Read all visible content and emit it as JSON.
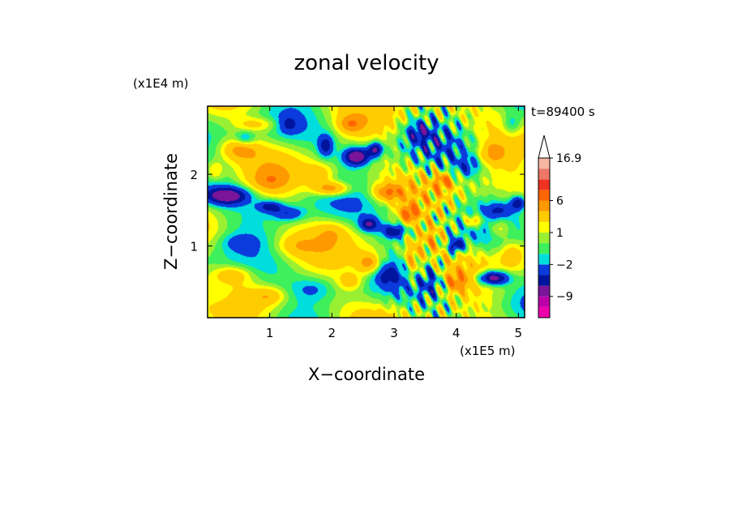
{
  "chart_data": {
    "type": "heatmap",
    "title": "zonal velocity",
    "xlabel": "X−coordinate",
    "ylabel": "Z−coordinate",
    "x_unit": "(x1E5 m)",
    "y_unit": "(x1E4 m)",
    "time_label": "t=89400 s",
    "xlim": [
      0,
      5.1
    ],
    "ylim": [
      0,
      2.95
    ],
    "x_ticks": [
      {
        "value": 1,
        "label": "1"
      },
      {
        "value": 2,
        "label": "2"
      },
      {
        "value": 3,
        "label": "3"
      },
      {
        "value": 4,
        "label": "4"
      },
      {
        "value": 5,
        "label": "5"
      }
    ],
    "y_ticks": [
      {
        "value": 1,
        "label": "1"
      },
      {
        "value": 2,
        "label": "2"
      }
    ],
    "colorbar": {
      "levels": [
        -16.9,
        -12,
        -9,
        -6,
        -4,
        -2,
        -1,
        0,
        1,
        2,
        4,
        6,
        9,
        12,
        16.9
      ],
      "colors": [
        "#ee00aa",
        "#bb00aa",
        "#7a1499",
        "#00149e",
        "#0b3bdc",
        "#00dddd",
        "#3ef05b",
        "#99f033",
        "#ffff00",
        "#ffcc00",
        "#ff9900",
        "#ff6600",
        "#ee3322",
        "#ee7766",
        "#f7b7a3"
      ],
      "labels": [
        {
          "value": 16.9,
          "label": "16.9"
        },
        {
          "value": 6,
          "label": "6"
        },
        {
          "value": 1,
          "label": "1"
        },
        {
          "value": -2,
          "label": "−2"
        },
        {
          "value": -9,
          "label": "−9"
        }
      ],
      "extend": "max"
    },
    "grid": false,
    "blobs": [
      {
        "x": 0.3,
        "z": 1.7,
        "v": -8,
        "sx": 0.35,
        "sz": 0.12
      },
      {
        "x": 1.0,
        "z": 1.55,
        "v": -5,
        "sx": 0.2,
        "sz": 0.08
      },
      {
        "x": 1.3,
        "z": 1.45,
        "v": -4,
        "sx": 0.25,
        "sz": 0.1
      },
      {
        "x": 2.4,
        "z": 2.25,
        "v": -9,
        "sx": 0.2,
        "sz": 0.12
      },
      {
        "x": 2.7,
        "z": 2.35,
        "v": -7,
        "sx": 0.12,
        "sz": 0.1
      },
      {
        "x": 1.9,
        "z": 2.4,
        "v": -5,
        "sx": 0.12,
        "sz": 0.15
      },
      {
        "x": 1.3,
        "z": 2.7,
        "v": -3,
        "sx": 0.15,
        "sz": 0.12
      },
      {
        "x": 0.6,
        "z": 2.5,
        "v": -3,
        "sx": 0.15,
        "sz": 0.1
      },
      {
        "x": 4.6,
        "z": 0.55,
        "v": -9,
        "sx": 0.25,
        "sz": 0.1
      },
      {
        "x": 4.0,
        "z": 1.0,
        "v": -7,
        "sx": 0.12,
        "sz": 0.1
      },
      {
        "x": 3.0,
        "z": 1.2,
        "v": -6,
        "sx": 0.2,
        "sz": 0.1
      },
      {
        "x": 2.6,
        "z": 1.3,
        "v": -6,
        "sx": 0.15,
        "sz": 0.1
      },
      {
        "x": 5.0,
        "z": 1.6,
        "v": -6,
        "sx": 0.12,
        "sz": 0.1
      },
      {
        "x": 4.7,
        "z": 1.5,
        "v": -3,
        "sx": 0.2,
        "sz": 0.1
      },
      {
        "x": 3.4,
        "z": 2.6,
        "v": -4,
        "sx": 0.2,
        "sz": 0.15
      },
      {
        "x": 3.6,
        "z": 0.5,
        "v": -3,
        "sx": 0.2,
        "sz": 0.2
      },
      {
        "x": 0.2,
        "z": 0.3,
        "v": -2,
        "sx": 0.3,
        "sz": 0.2
      },
      {
        "x": 2.9,
        "z": 0.6,
        "v": -3,
        "sx": 0.2,
        "sz": 0.15
      },
      {
        "x": 1.7,
        "z": 0.4,
        "v": -2,
        "sx": 0.3,
        "sz": 0.15
      },
      {
        "x": 0.5,
        "z": 1.05,
        "v": -2,
        "sx": 0.3,
        "sz": 0.12
      },
      {
        "x": 4.2,
        "z": 2.1,
        "v": -3,
        "sx": 0.2,
        "sz": 0.15
      },
      {
        "x": 4.9,
        "z": 2.7,
        "v": -3,
        "sx": 0.15,
        "sz": 0.15
      },
      {
        "x": 2.0,
        "z": 1.8,
        "v": 6,
        "sx": 0.3,
        "sz": 0.1
      },
      {
        "x": 2.9,
        "z": 1.75,
        "v": 5,
        "sx": 0.25,
        "sz": 0.12
      },
      {
        "x": 3.25,
        "z": 1.45,
        "v": 6,
        "sx": 0.15,
        "sz": 0.12
      },
      {
        "x": 0.5,
        "z": 2.35,
        "v": 4,
        "sx": 0.3,
        "sz": 0.15
      },
      {
        "x": 0.8,
        "z": 2.7,
        "v": 3,
        "sx": 0.35,
        "sz": 0.1
      },
      {
        "x": 1.0,
        "z": 1.9,
        "v": 3,
        "sx": 0.3,
        "sz": 0.15
      },
      {
        "x": 1.8,
        "z": 2.0,
        "v": 3,
        "sx": 0.25,
        "sz": 0.15
      },
      {
        "x": 2.6,
        "z": 0.75,
        "v": 5,
        "sx": 0.2,
        "sz": 0.15
      },
      {
        "x": 2.3,
        "z": 0.5,
        "v": 3,
        "sx": 0.2,
        "sz": 0.12
      },
      {
        "x": 3.3,
        "z": 0.8,
        "v": 4,
        "sx": 0.15,
        "sz": 0.3
      },
      {
        "x": 4.3,
        "z": 1.35,
        "v": 5,
        "sx": 0.15,
        "sz": 0.1
      },
      {
        "x": 4.7,
        "z": 1.25,
        "v": 4,
        "sx": 0.2,
        "sz": 0.15
      },
      {
        "x": 4.0,
        "z": 0.5,
        "v": 4,
        "sx": 0.2,
        "sz": 0.15
      },
      {
        "x": 3.8,
        "z": 1.9,
        "v": 5,
        "sx": 0.15,
        "sz": 0.12
      },
      {
        "x": 4.6,
        "z": 2.3,
        "v": 4,
        "sx": 0.2,
        "sz": 0.15
      },
      {
        "x": 2.3,
        "z": 2.7,
        "v": 4,
        "sx": 0.2,
        "sz": 0.12
      },
      {
        "x": 0.4,
        "z": 0.6,
        "v": 3,
        "sx": 0.3,
        "sz": 0.12
      },
      {
        "x": 1.0,
        "z": 0.3,
        "v": 3,
        "sx": 0.25,
        "sz": 0.12
      },
      {
        "x": 1.4,
        "z": 1.0,
        "v": 2,
        "sx": 0.3,
        "sz": 0.15
      },
      {
        "x": 2.0,
        "z": 1.2,
        "v": 2,
        "sx": 0.25,
        "sz": 0.15
      },
      {
        "x": 0.1,
        "z": 2.05,
        "v": 3,
        "sx": 0.15,
        "sz": 0.15
      },
      {
        "x": 4.9,
        "z": 0.9,
        "v": 3,
        "sx": 0.2,
        "sz": 0.2
      },
      {
        "x": 3.6,
        "z": 1.1,
        "v": 3,
        "sx": 0.15,
        "sz": 0.2
      }
    ]
  }
}
